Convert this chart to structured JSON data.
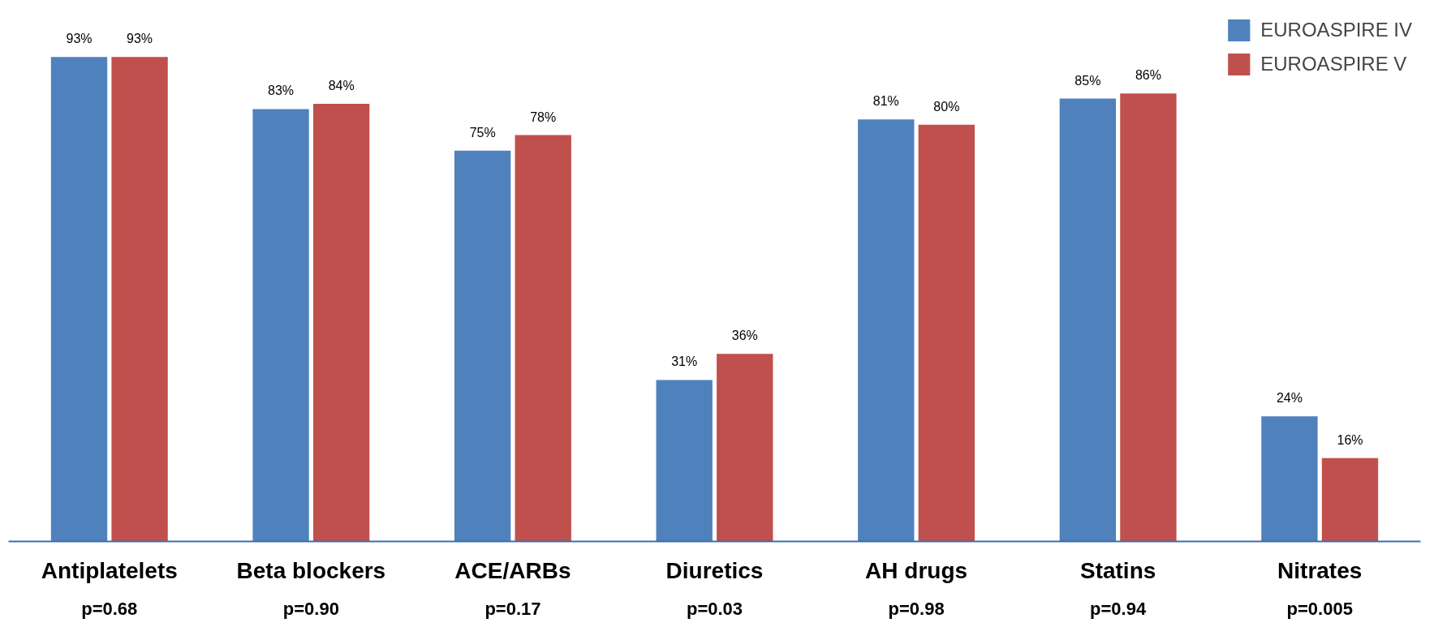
{
  "chart_data": {
    "type": "bar",
    "categories": [
      "Antiplatelets",
      "Beta blockers",
      "ACE/ARBs",
      "Diuretics",
      "AH drugs",
      "Statins",
      "Nitrates"
    ],
    "series": [
      {
        "name": "EUROASPIRE IV",
        "color": "#4f81bd",
        "values": [
          93,
          83,
          75,
          31,
          81,
          85,
          24
        ],
        "value_labels": [
          "93%",
          "83%",
          "75%",
          "31%",
          "81%",
          "85%",
          "24%"
        ]
      },
      {
        "name": "EUROASPIRE V",
        "color": "#c0504d",
        "values": [
          93,
          84,
          78,
          36,
          80,
          86,
          16
        ],
        "value_labels": [
          "93%",
          "84%",
          "78%",
          "36%",
          "80%",
          "86%",
          "16%"
        ]
      }
    ],
    "annotations": [
      "p=0.68",
      "p=0.90",
      "p=0.17",
      "p=0.03",
      "p=0.98",
      "p=0.94",
      "p=0.005"
    ],
    "legend": "top right",
    "grid": false
  }
}
